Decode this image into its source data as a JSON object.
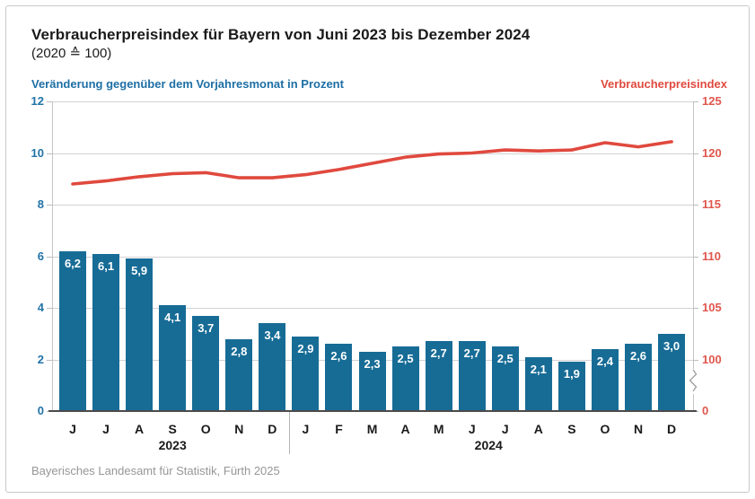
{
  "header": {
    "title": "Verbraucherpreisindex für Bayern von Juni 2023 bis Dezember 2024",
    "subtitle": "(2020 ≙ 100)",
    "left_series_label": "Veränderung gegenüber dem Vorjahresmonat in Prozent",
    "right_series_label": "Verbraucherpreisindex"
  },
  "footer": {
    "source": "Bayerisches Landesamt für Statistik, Fürth 2025"
  },
  "colors": {
    "bar": "#176c96",
    "line": "#e0493e",
    "left_axis_text": "#2273a8",
    "right_axis_text": "#e0564c",
    "title_text": "#1a1a1a",
    "footer_text": "#969696",
    "gridline": "#d2d2d2"
  },
  "chart_data": {
    "type": "bar",
    "title": "Verbraucherpreisindex für Bayern von Juni 2023 bis Dezember 2024 (2020 ≙ 100)",
    "categories": [
      "J",
      "J",
      "A",
      "S",
      "O",
      "N",
      "D",
      "J",
      "F",
      "M",
      "A",
      "M",
      "J",
      "J",
      "A",
      "S",
      "O",
      "N",
      "D"
    ],
    "year_groups": [
      {
        "label": "2023",
        "start_index": 0,
        "end_index": 6
      },
      {
        "label": "2024",
        "start_index": 7,
        "end_index": 18
      }
    ],
    "series": [
      {
        "name": "Veränderung gegenüber dem Vorjahresmonat in Prozent",
        "type": "bar",
        "axis": "left",
        "values": [
          6.2,
          6.1,
          5.9,
          4.1,
          3.7,
          2.8,
          3.4,
          2.9,
          2.6,
          2.3,
          2.5,
          2.7,
          2.7,
          2.5,
          2.1,
          1.9,
          2.4,
          2.6,
          3.0
        ],
        "labels": [
          "6,2",
          "6,1",
          "5,9",
          "4,1",
          "3,7",
          "2,8",
          "3,4",
          "2,9",
          "2,6",
          "2,3",
          "2,5",
          "2,7",
          "2,7",
          "2,5",
          "2,1",
          "1,9",
          "2,4",
          "2,6",
          "3,0"
        ]
      },
      {
        "name": "Verbraucherpreisindex",
        "type": "line",
        "axis": "right",
        "values": [
          117.0,
          117.3,
          117.7,
          118.0,
          118.1,
          117.6,
          117.6,
          117.9,
          118.4,
          119.0,
          119.6,
          119.9,
          120.0,
          120.3,
          120.2,
          120.3,
          121.0,
          120.6,
          121.1
        ]
      }
    ],
    "left_axis": {
      "label": "Veränderung gegenüber dem Vorjahresmonat in Prozent",
      "range": [
        0,
        12
      ],
      "ticks": [
        0,
        2,
        4,
        6,
        8,
        10,
        12
      ]
    },
    "right_axis": {
      "label": "Verbraucherpreisindex",
      "ticks": [
        0,
        100,
        105,
        110,
        115,
        120,
        125
      ],
      "axis_break_between": [
        0,
        100
      ],
      "mapping": "100 aligns with left 2, 125 aligns with left 12"
    },
    "grid": true,
    "legend_position": "top (colored axis captions)"
  }
}
